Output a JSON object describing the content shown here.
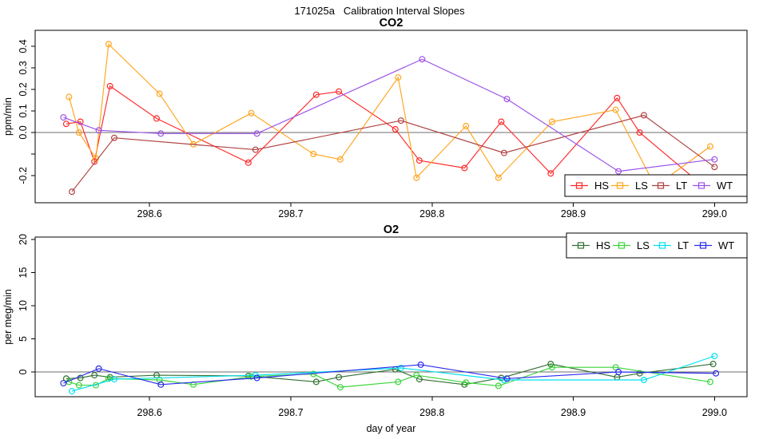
{
  "title": "171025a   Calibration Interval Slopes",
  "chart_data": [
    {
      "type": "line",
      "title": "CO2",
      "xlabel": "",
      "ylabel": "ppm/min",
      "xlim": [
        298.519,
        299.023
      ],
      "ylim": [
        -0.326,
        0.474
      ],
      "grid": false,
      "hline": 0.0,
      "hline_color": "#6e6e6e",
      "xticks": [
        {
          "v": 298.6,
          "label": "298.6"
        },
        {
          "v": 298.7,
          "label": "298.7"
        },
        {
          "v": 298.8,
          "label": "298.8"
        },
        {
          "v": 298.9,
          "label": "298.9"
        },
        {
          "v": 299.0,
          "label": "299.0"
        }
      ],
      "yticks": [
        {
          "v": 0.4,
          "label": "0.4"
        },
        {
          "v": 0.3,
          "label": "0.3"
        },
        {
          "v": 0.2,
          "label": "0.2"
        },
        {
          "v": 0.1,
          "label": "0.1"
        },
        {
          "v": 0.0,
          "label": "0.0"
        },
        {
          "v": -0.1,
          "label": ""
        },
        {
          "v": -0.2,
          "label": "-0.2"
        }
      ],
      "legend_position": "bottom-right",
      "series": [
        {
          "name": "HS",
          "color": "#ff2a2a",
          "points": [
            [
              298.541,
              0.04
            ],
            [
              298.551,
              0.05
            ],
            [
              298.561,
              -0.135
            ],
            [
              298.572,
              0.215
            ],
            [
              298.605,
              0.065
            ],
            [
              298.67,
              -0.14
            ],
            [
              298.718,
              0.175
            ],
            [
              298.734,
              0.19
            ],
            [
              298.774,
              0.015
            ],
            [
              298.791,
              -0.13
            ],
            [
              298.823,
              -0.165
            ],
            [
              298.849,
              0.05
            ],
            [
              298.884,
              -0.19
            ],
            [
              298.931,
              0.16
            ],
            [
              298.947,
              0.0
            ],
            [
              298.996,
              -0.27
            ]
          ]
        },
        {
          "name": "LS",
          "color": "#ffa51e",
          "points": [
            [
              298.543,
              0.165
            ],
            [
              298.55,
              0.0
            ],
            [
              298.562,
              -0.12
            ],
            [
              298.571,
              0.41
            ],
            [
              298.607,
              0.18
            ],
            [
              298.631,
              -0.055
            ],
            [
              298.672,
              0.09
            ],
            [
              298.716,
              -0.1
            ],
            [
              298.735,
              -0.125
            ],
            [
              298.776,
              0.255
            ],
            [
              298.789,
              -0.21
            ],
            [
              298.824,
              0.03
            ],
            [
              298.847,
              -0.21
            ],
            [
              298.885,
              0.05
            ],
            [
              298.93,
              0.105
            ],
            [
              298.958,
              -0.25
            ],
            [
              298.997,
              -0.065
            ]
          ]
        },
        {
          "name": "LT",
          "color": "#b04040",
          "points": [
            [
              298.545,
              -0.275
            ],
            [
              298.575,
              -0.025
            ],
            [
              298.675,
              -0.08
            ],
            [
              298.778,
              0.055
            ],
            [
              298.851,
              -0.095
            ],
            [
              298.95,
              0.08
            ],
            [
              299.0,
              -0.16
            ]
          ]
        },
        {
          "name": "WT",
          "color": "#9b51e8",
          "points": [
            [
              298.539,
              0.07
            ],
            [
              298.564,
              0.01
            ],
            [
              298.608,
              -0.005
            ],
            [
              298.676,
              -0.005
            ],
            [
              298.793,
              0.34
            ],
            [
              298.853,
              0.155
            ],
            [
              298.932,
              -0.18
            ],
            [
              299.0,
              -0.125
            ]
          ]
        }
      ]
    },
    {
      "type": "line",
      "title": "O2",
      "xlabel": "day of year",
      "ylabel": "per meg/min",
      "xlim": [
        298.519,
        299.023
      ],
      "ylim": [
        -3.735,
        20.36
      ],
      "grid": false,
      "hline": 0.0,
      "hline_color": "#6e6e6e",
      "xticks": [
        {
          "v": 298.6,
          "label": "298.6"
        },
        {
          "v": 298.7,
          "label": "298.7"
        },
        {
          "v": 298.8,
          "label": "298.8"
        },
        {
          "v": 298.9,
          "label": "298.9"
        },
        {
          "v": 299.0,
          "label": "299.0"
        }
      ],
      "yticks": [
        {
          "v": 0,
          "label": "0"
        },
        {
          "v": 5,
          "label": "5"
        },
        {
          "v": 10,
          "label": "10"
        },
        {
          "v": 15,
          "label": "15"
        },
        {
          "v": 20,
          "label": "20"
        }
      ],
      "legend_position": "top-right",
      "series": [
        {
          "name": "HS",
          "color": "#337033",
          "points": [
            [
              298.541,
              -1.0
            ],
            [
              298.551,
              -0.9
            ],
            [
              298.561,
              -0.5
            ],
            [
              298.572,
              -0.8
            ],
            [
              298.605,
              -0.5
            ],
            [
              298.67,
              -0.6
            ],
            [
              298.718,
              -1.5
            ],
            [
              298.734,
              -0.8
            ],
            [
              298.774,
              0.4
            ],
            [
              298.791,
              -1.1
            ],
            [
              298.823,
              -1.9
            ],
            [
              298.849,
              -0.9
            ],
            [
              298.884,
              1.2
            ],
            [
              298.931,
              -0.8
            ],
            [
              298.947,
              -0.2
            ],
            [
              298.999,
              1.2
            ]
          ]
        },
        {
          "name": "LS",
          "color": "#3bd43b",
          "points": [
            [
              298.543,
              -1.5
            ],
            [
              298.55,
              -2.0
            ],
            [
              298.562,
              -2.0
            ],
            [
              298.571,
              -1.0
            ],
            [
              298.607,
              -1.2
            ],
            [
              298.631,
              -1.9
            ],
            [
              298.672,
              -0.7
            ],
            [
              298.716,
              -0.3
            ],
            [
              298.735,
              -2.3
            ],
            [
              298.776,
              -1.5
            ],
            [
              298.789,
              -0.5
            ],
            [
              298.824,
              -1.6
            ],
            [
              298.847,
              -2.1
            ],
            [
              298.885,
              0.7
            ],
            [
              298.93,
              0.7
            ],
            [
              298.997,
              -1.5
            ]
          ]
        },
        {
          "name": "LT",
          "color": "#00e0ee",
          "points": [
            [
              298.545,
              -2.9
            ],
            [
              298.575,
              -1.1
            ],
            [
              298.675,
              -0.5
            ],
            [
              298.778,
              0.6
            ],
            [
              298.851,
              -1.2
            ],
            [
              298.95,
              -1.2
            ],
            [
              299.0,
              2.4
            ]
          ]
        },
        {
          "name": "WT",
          "color": "#2a2aee",
          "points": [
            [
              298.539,
              -1.7
            ],
            [
              298.564,
              0.5
            ],
            [
              298.608,
              -1.9
            ],
            [
              298.676,
              -0.9
            ],
            [
              298.792,
              1.1
            ],
            [
              298.853,
              -1.0
            ],
            [
              298.932,
              0.0
            ],
            [
              299.001,
              -0.2
            ]
          ]
        }
      ]
    }
  ]
}
